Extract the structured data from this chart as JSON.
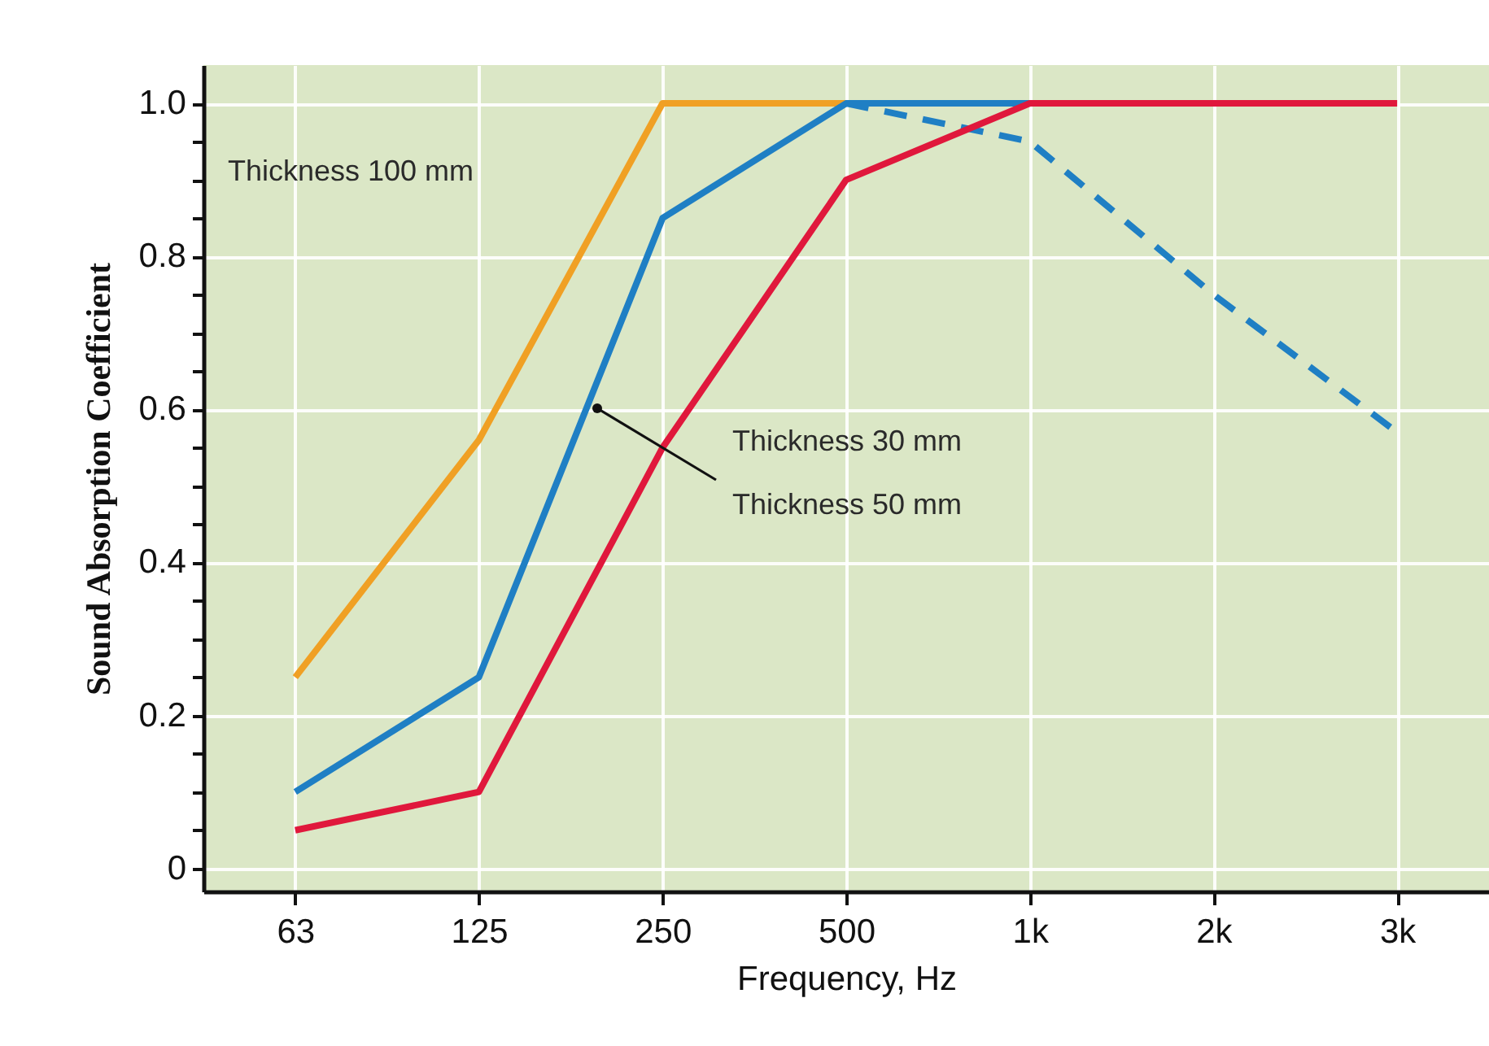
{
  "chart_data": {
    "type": "line",
    "xlabel": "Frequency, Hz",
    "ylabel": "Sound Absorption Coefficient",
    "categories": [
      "63",
      "125",
      "250",
      "500",
      "1k",
      "2k",
      "3k"
    ],
    "series": [
      {
        "color": "#f0a024",
        "values": [
          0.25,
          0.56,
          1.0,
          1.0,
          null,
          null,
          null
        ]
      },
      {
        "color": "#1f7fc4",
        "line_style": "dashed",
        "values": [
          null,
          null,
          null,
          1.0,
          0.95,
          0.75,
          0.57
        ]
      },
      {
        "color": "#1f7fc4",
        "values": [
          0.1,
          0.25,
          0.85,
          1.0,
          1.0,
          null,
          null
        ]
      },
      {
        "color": "#e0183c",
        "values": [
          0.05,
          0.1,
          0.55,
          0.9,
          1.0,
          1.0,
          1.0
        ]
      }
    ],
    "ylim": [
      -0.03,
      1.05
    ],
    "yticks": [
      0,
      {
        "value": 0.05,
        "label": null
      },
      {
        "value": 0.1,
        "label": null
      },
      {
        "value": 0.15,
        "label": null
      },
      0.2,
      {
        "value": 0.25,
        "label": null
      },
      {
        "value": 0.3,
        "label": null
      },
      {
        "value": 0.35,
        "label": null
      },
      0.4,
      {
        "value": 0.45,
        "label": null
      },
      {
        "value": 0.5,
        "label": null
      },
      {
        "value": 0.55,
        "label": null
      },
      0.6,
      {
        "value": 0.65,
        "label": null
      },
      {
        "value": 0.7,
        "label": null
      },
      {
        "value": 0.75,
        "label": null
      },
      0.8,
      {
        "value": 0.85,
        "label": null
      },
      {
        "value": 0.9,
        "label": null
      },
      {
        "value": 0.95,
        "label": null
      },
      {
        "value": 1.0,
        "label": "1.0"
      }
    ],
    "grid": true,
    "line_style": "solid",
    "marker": "none",
    "annotations": [
      "Thickness 100 mm",
      "Thickness 30 mm",
      "Thickness 50 mm"
    ]
  }
}
